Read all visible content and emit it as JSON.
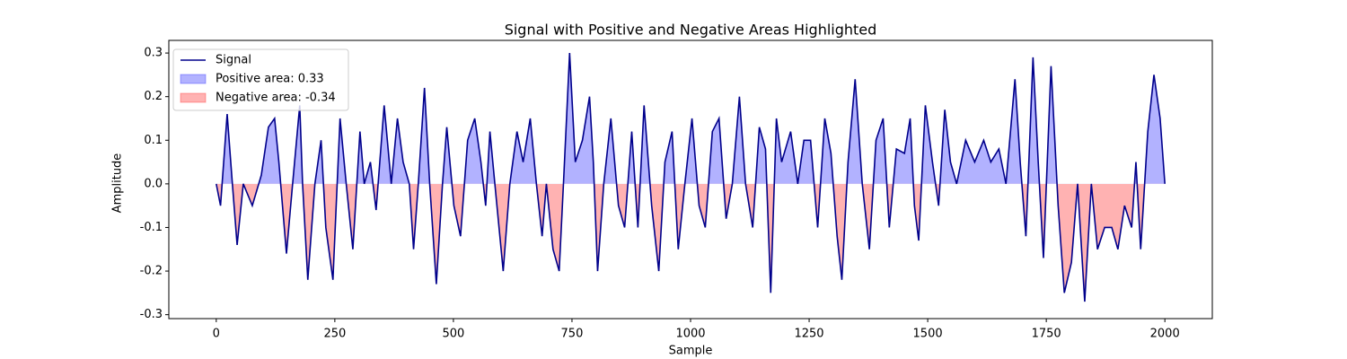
{
  "chart_data": {
    "type": "line",
    "title": "Signal with Positive and Negative Areas Highlighted",
    "x_label": "Sample",
    "y_label": "Amplitude",
    "x": [
      0,
      9,
      23,
      34,
      44,
      57,
      76,
      95,
      110,
      123,
      132,
      148,
      161,
      176,
      182,
      193,
      208,
      221,
      231,
      246,
      261,
      274,
      288,
      303,
      312,
      325,
      337,
      354,
      369,
      382,
      394,
      407,
      416,
      426,
      439,
      450,
      464,
      477,
      486,
      501,
      515,
      530,
      545,
      558,
      568,
      577,
      590,
      605,
      619,
      634,
      647,
      662,
      675,
      687,
      696,
      710,
      723,
      732,
      745,
      757,
      772,
      787,
      795,
      804,
      817,
      832,
      848,
      861,
      876,
      889,
      902,
      918,
      933,
      946,
      961,
      974,
      988,
      1003,
      1018,
      1031,
      1046,
      1060,
      1075,
      1088,
      1103,
      1116,
      1131,
      1145,
      1158,
      1169,
      1181,
      1192,
      1211,
      1226,
      1239,
      1253,
      1268,
      1283,
      1296,
      1309,
      1319,
      1332,
      1347,
      1362,
      1377,
      1391,
      1406,
      1419,
      1434,
      1451,
      1463,
      1472,
      1481,
      1495,
      1510,
      1523,
      1536,
      1548,
      1561,
      1580,
      1599,
      1618,
      1633,
      1650,
      1665,
      1684,
      1695,
      1707,
      1722,
      1733,
      1744,
      1760,
      1775,
      1788,
      1803,
      1816,
      1831,
      1845,
      1858,
      1873,
      1888,
      1901,
      1915,
      1930,
      1939,
      1949,
      1964,
      1977,
      1990,
      2000
    ],
    "series": [
      {
        "name": "Signal",
        "color": "#00008b",
        "values": [
          0.0,
          -0.05,
          0.16,
          0.0,
          -0.14,
          0.0,
          -0.05,
          0.02,
          0.13,
          0.15,
          0.05,
          -0.16,
          0.0,
          0.18,
          0.0,
          -0.22,
          0.0,
          0.1,
          -0.1,
          -0.22,
          0.15,
          0.0,
          -0.15,
          0.12,
          0.0,
          0.05,
          -0.06,
          0.18,
          0.0,
          0.15,
          0.05,
          0.0,
          -0.15,
          0.0,
          0.22,
          0.0,
          -0.23,
          0.0,
          0.13,
          -0.05,
          -0.12,
          0.1,
          0.15,
          0.05,
          -0.05,
          0.12,
          -0.03,
          -0.2,
          0.0,
          0.12,
          0.05,
          0.15,
          0.0,
          -0.12,
          0.0,
          -0.15,
          -0.2,
          0.0,
          0.3,
          0.05,
          0.1,
          0.2,
          0.05,
          -0.2,
          0.0,
          0.15,
          -0.05,
          -0.1,
          0.12,
          -0.1,
          0.18,
          -0.05,
          -0.2,
          0.05,
          0.12,
          -0.15,
          0.0,
          0.15,
          -0.05,
          -0.1,
          0.12,
          0.15,
          -0.08,
          0.0,
          0.2,
          0.0,
          -0.1,
          0.13,
          0.08,
          -0.25,
          0.15,
          0.05,
          0.12,
          0.0,
          0.1,
          0.1,
          -0.1,
          0.15,
          0.07,
          -0.12,
          -0.22,
          0.05,
          0.24,
          0.0,
          -0.15,
          0.1,
          0.15,
          -0.1,
          0.08,
          0.07,
          0.15,
          -0.05,
          -0.13,
          0.18,
          0.05,
          -0.05,
          0.17,
          0.05,
          0.0,
          0.1,
          0.05,
          0.1,
          0.05,
          0.08,
          0.0,
          0.24,
          0.05,
          -0.12,
          0.29,
          0.05,
          -0.17,
          0.27,
          -0.05,
          -0.25,
          -0.18,
          0.0,
          -0.27,
          0.0,
          -0.15,
          -0.1,
          -0.1,
          -0.15,
          -0.05,
          -0.1,
          0.05,
          -0.15,
          0.12,
          0.25,
          0.15,
          0.0
        ]
      }
    ],
    "areas": [
      {
        "name": "Positive area: 0.33",
        "color": "#0000ff",
        "side": "positive"
      },
      {
        "name": "Negative area: -0.34",
        "color": "#ff0000",
        "side": "negative"
      }
    ],
    "area_opacity": 0.3,
    "xlim": [
      -100,
      2100
    ],
    "xticks": [
      0,
      250,
      500,
      750,
      1000,
      1250,
      1500,
      1750,
      2000
    ],
    "ylim": [
      -0.309,
      0.329
    ],
    "yticks": [
      -0.3,
      -0.2,
      -0.1,
      {
        "value": 0,
        "label": "0.0"
      },
      0.1,
      0.2,
      0.3
    ],
    "legend": "upper left"
  }
}
